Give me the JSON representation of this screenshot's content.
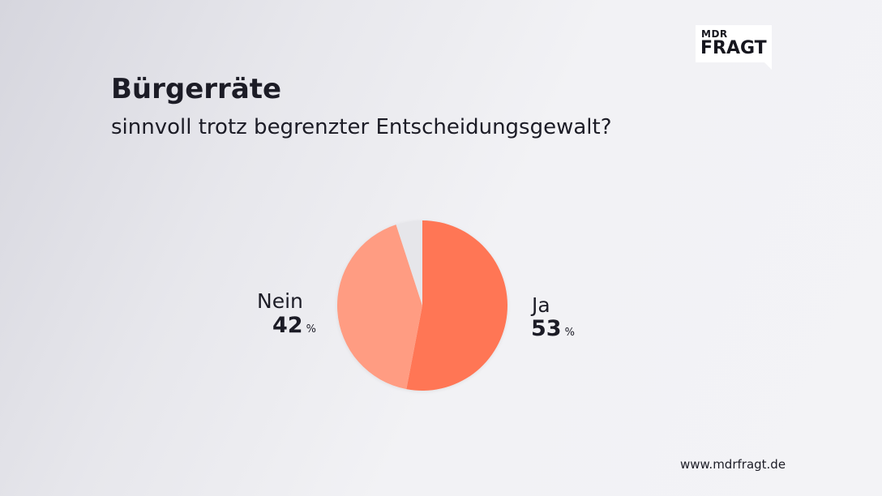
{
  "brand": {
    "logo_top": "MDR",
    "logo_main": "FRAGT"
  },
  "footer": {
    "url": "www.mdrfragt.de"
  },
  "chart_data": {
    "type": "pie",
    "title": "Bürgerräte",
    "subtitle": "sinnvoll trotz begrenzter Entscheidungsgewalt?",
    "unit": "%",
    "slices": [
      {
        "name": "Ja",
        "value": 53,
        "color": "#ff7655"
      },
      {
        "name": "Nein",
        "value": 42,
        "color": "#ff9c82"
      },
      {
        "name": "",
        "value": 5,
        "color": "#e6e6ea"
      }
    ]
  }
}
